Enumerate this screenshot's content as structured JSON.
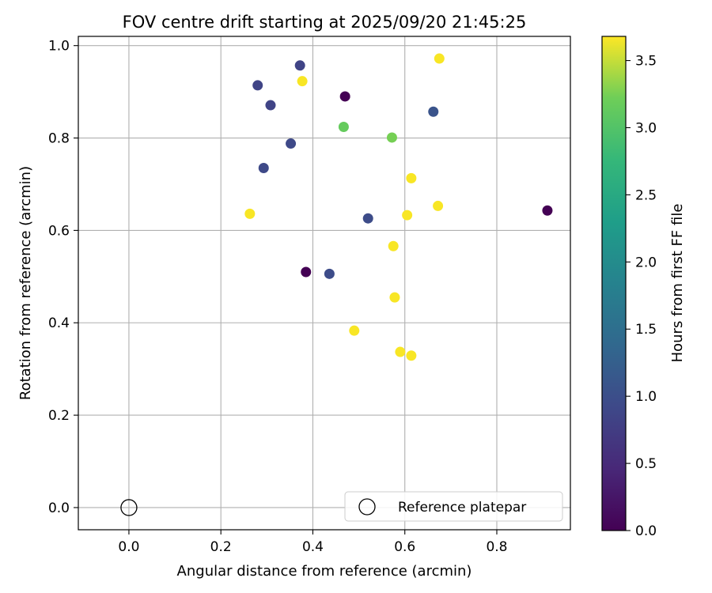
{
  "chart_data": {
    "type": "scatter",
    "title": "FOV centre drift starting at 2025/09/20 21:45:25",
    "xlabel": "Angular distance from reference (arcmin)",
    "ylabel": "Rotation from reference (arcmin)",
    "xlim": [
      -0.11,
      0.96
    ],
    "ylim": [
      -0.048,
      1.02
    ],
    "xticks": [
      0.0,
      0.2,
      0.4,
      0.6,
      0.8
    ],
    "xtick_labels": [
      "0.0",
      "0.2",
      "0.4",
      "0.6",
      "0.8"
    ],
    "yticks": [
      0.0,
      0.2,
      0.4,
      0.6,
      0.8,
      1.0
    ],
    "ytick_labels": [
      "0.0",
      "0.2",
      "0.4",
      "0.6",
      "0.8",
      "1.0"
    ],
    "grid": true,
    "legend": {
      "placement": "lower right",
      "entries": [
        "Reference platepar"
      ]
    },
    "reference_point": {
      "x": 0.0,
      "y": 0.0,
      "label": "Reference platepar"
    },
    "colorbar": {
      "label": "Hours from first FF file",
      "colormap": "viridis",
      "range": [
        0.0,
        3.68
      ],
      "ticks": [
        0.0,
        0.5,
        1.0,
        1.5,
        2.0,
        2.5,
        3.0,
        3.5
      ],
      "tick_labels": [
        "0.0",
        "0.5",
        "1.0",
        "1.5",
        "2.0",
        "2.5",
        "3.0",
        "3.5"
      ]
    },
    "points": [
      {
        "x": 0.47,
        "y": 0.89,
        "c": 0.0
      },
      {
        "x": 0.385,
        "y": 0.51,
        "c": 0.0
      },
      {
        "x": 0.91,
        "y": 0.643,
        "c": 0.0
      },
      {
        "x": 0.372,
        "y": 0.957,
        "c": 0.75
      },
      {
        "x": 0.28,
        "y": 0.914,
        "c": 0.75
      },
      {
        "x": 0.308,
        "y": 0.871,
        "c": 0.75
      },
      {
        "x": 0.352,
        "y": 0.788,
        "c": 0.8
      },
      {
        "x": 0.293,
        "y": 0.735,
        "c": 0.8
      },
      {
        "x": 0.436,
        "y": 0.506,
        "c": 0.85
      },
      {
        "x": 0.52,
        "y": 0.626,
        "c": 0.85
      },
      {
        "x": 0.662,
        "y": 0.857,
        "c": 0.95
      },
      {
        "x": 0.467,
        "y": 0.824,
        "c": 2.8
      },
      {
        "x": 0.572,
        "y": 0.801,
        "c": 2.9
      },
      {
        "x": 0.675,
        "y": 0.972,
        "c": 3.65
      },
      {
        "x": 0.377,
        "y": 0.923,
        "c": 3.65
      },
      {
        "x": 0.263,
        "y": 0.636,
        "c": 3.65
      },
      {
        "x": 0.614,
        "y": 0.713,
        "c": 3.65
      },
      {
        "x": 0.672,
        "y": 0.653,
        "c": 3.65
      },
      {
        "x": 0.605,
        "y": 0.633,
        "c": 3.65
      },
      {
        "x": 0.575,
        "y": 0.566,
        "c": 3.65
      },
      {
        "x": 0.578,
        "y": 0.455,
        "c": 3.65
      },
      {
        "x": 0.49,
        "y": 0.383,
        "c": 3.65
      },
      {
        "x": 0.59,
        "y": 0.337,
        "c": 3.65
      },
      {
        "x": 0.614,
        "y": 0.329,
        "c": 3.65
      }
    ]
  }
}
